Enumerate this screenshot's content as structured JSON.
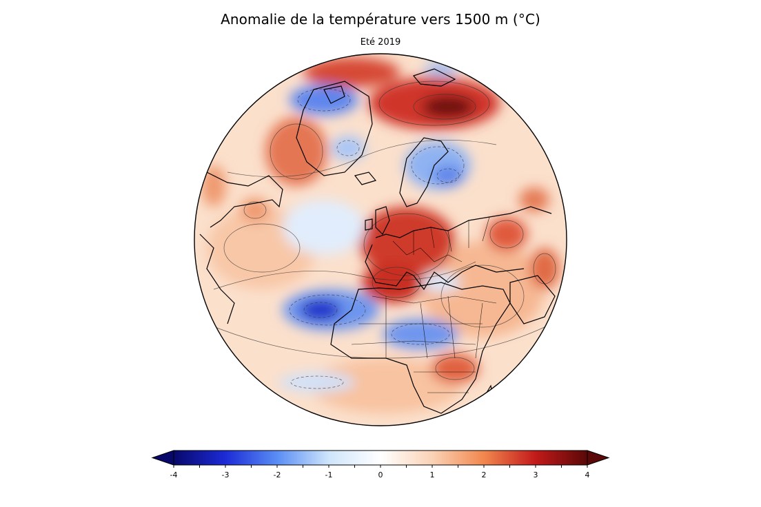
{
  "title": "Anomalie de la température vers 1500 m (°C)",
  "subtitle": "Eté 2019",
  "colorbar": {
    "min": -4,
    "max": 4,
    "tick_labels": [
      "-4",
      "-3",
      "-2",
      "-1",
      "0",
      "1",
      "2",
      "3",
      "4"
    ],
    "extend": "both",
    "colors": [
      "#08086b",
      "#1c2bd6",
      "#5a8df5",
      "#cfe5fb",
      "#ffffff",
      "#fad2b6",
      "#f2874e",
      "#c21a1a",
      "#5a0808"
    ]
  },
  "map": {
    "projection": "orthographic",
    "anomaly_regions": [
      {
        "name": "siberia-barents",
        "sign": "positive",
        "strength": "strong"
      },
      {
        "name": "central-europe",
        "sign": "positive",
        "strength": "strong"
      },
      {
        "name": "north-africa-spain",
        "sign": "positive",
        "strength": "strong"
      },
      {
        "name": "greenland-west",
        "sign": "negative",
        "strength": "moderate"
      },
      {
        "name": "scandinavia-russia",
        "sign": "negative",
        "strength": "moderate"
      },
      {
        "name": "west-africa-atlantic",
        "sign": "negative",
        "strength": "strong"
      },
      {
        "name": "central-africa",
        "sign": "negative",
        "strength": "moderate"
      },
      {
        "name": "southern-africa",
        "sign": "positive",
        "strength": "moderate"
      }
    ]
  }
}
